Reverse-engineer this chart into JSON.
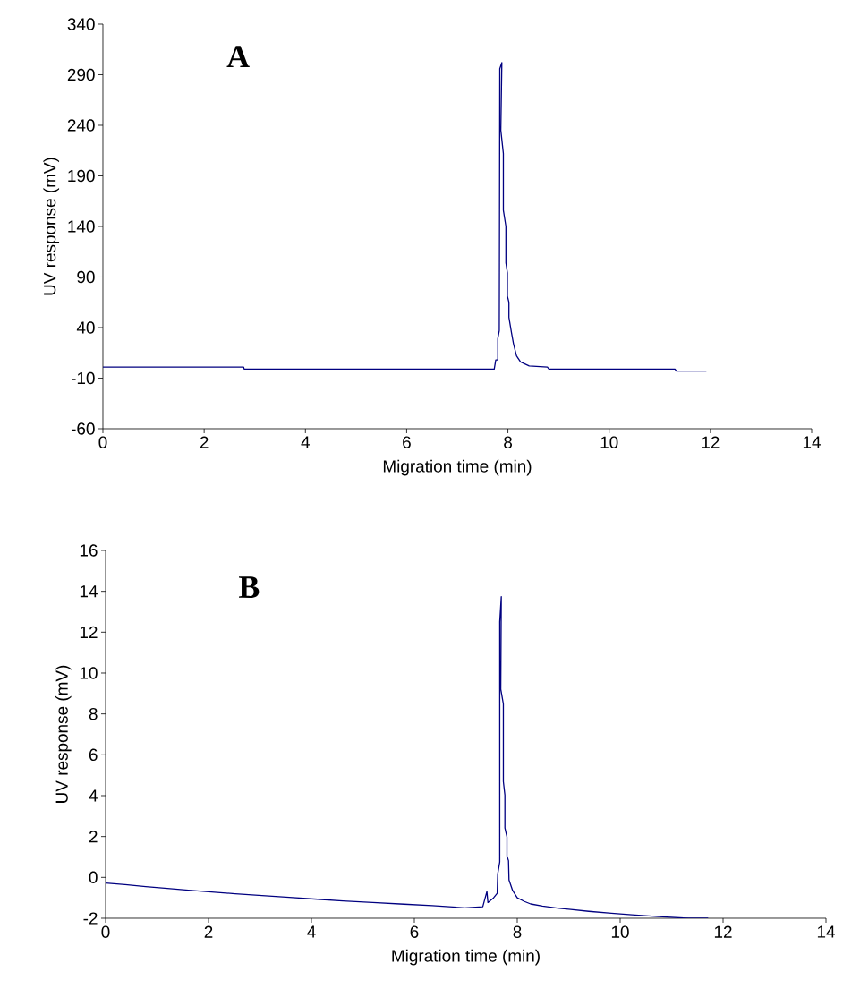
{
  "chart_data": [
    {
      "type": "line",
      "title": "A",
      "xlabel": "Migration time (min)",
      "ylabel": "UV response (mV)",
      "xlim": [
        0,
        14
      ],
      "xticks": [
        0,
        2,
        4,
        6,
        8,
        10,
        12,
        14
      ],
      "ylim": [
        -60,
        340
      ],
      "yticks": [
        -60,
        -10,
        40,
        90,
        140,
        190,
        240,
        290,
        340
      ],
      "line_style": "solid",
      "series": [
        {
          "color": "#000080",
          "x": [
            0,
            2.78,
            2.79,
            7.73,
            7.76,
            7.8,
            7.8,
            7.83,
            7.84,
            7.88,
            7.86,
            7.91,
            7.91,
            7.96,
            7.96,
            7.99,
            7.99,
            8.02,
            8.02,
            8.07,
            8.11,
            8.17,
            8.25,
            8.42,
            8.78,
            8.81,
            11.3,
            11.33,
            11.92
          ],
          "values": [
            1,
            1,
            -1,
            -1,
            8,
            8,
            29,
            37,
            296,
            302,
            235,
            212,
            156,
            140,
            104,
            94,
            71,
            65,
            50,
            35,
            24,
            12,
            6,
            2,
            1,
            -1,
            -1,
            -3,
            -3
          ]
        }
      ]
    },
    {
      "type": "line",
      "title": "B",
      "xlabel": "Migration time (min)",
      "ylabel": "UV response (mV)",
      "xlim": [
        0,
        14
      ],
      "xticks": [
        0,
        2,
        4,
        6,
        8,
        10,
        12,
        14
      ],
      "ylim": [
        -2,
        16
      ],
      "yticks": [
        -2,
        0,
        2,
        4,
        6,
        8,
        10,
        12,
        14,
        16
      ],
      "line_style": "solid",
      "series": [
        {
          "color": "#000080",
          "x": [
            0,
            0.38,
            0.78,
            1.2,
            1.61,
            2.06,
            2.52,
            3.04,
            3.57,
            4.12,
            4.61,
            5.19,
            5.8,
            6.35,
            6.98,
            7.33,
            7.41,
            7.43,
            7.54,
            7.61,
            7.62,
            7.66,
            7.66,
            7.69,
            7.68,
            7.73,
            7.73,
            7.76,
            7.76,
            7.8,
            7.8,
            7.83,
            7.84,
            7.91,
            8.0,
            8.14,
            8.26,
            8.49,
            8.78,
            9.04,
            9.39,
            9.83,
            10.23,
            10.75,
            11.33,
            11.71
          ],
          "values": [
            -0.28,
            -0.35,
            -0.45,
            -0.54,
            -0.63,
            -0.71,
            -0.8,
            -0.89,
            -0.98,
            -1.07,
            -1.15,
            -1.23,
            -1.31,
            -1.38,
            -1.49,
            -1.44,
            -0.69,
            -1.23,
            -1.0,
            -0.78,
            0.16,
            0.75,
            12.5,
            13.74,
            9.21,
            8.48,
            4.69,
            4.03,
            2.42,
            1.98,
            1.04,
            0.82,
            -0.13,
            -0.64,
            -1.0,
            -1.18,
            -1.3,
            -1.4,
            -1.5,
            -1.57,
            -1.66,
            -1.75,
            -1.83,
            -1.92,
            -2.0,
            -2.0
          ]
        }
      ]
    }
  ]
}
